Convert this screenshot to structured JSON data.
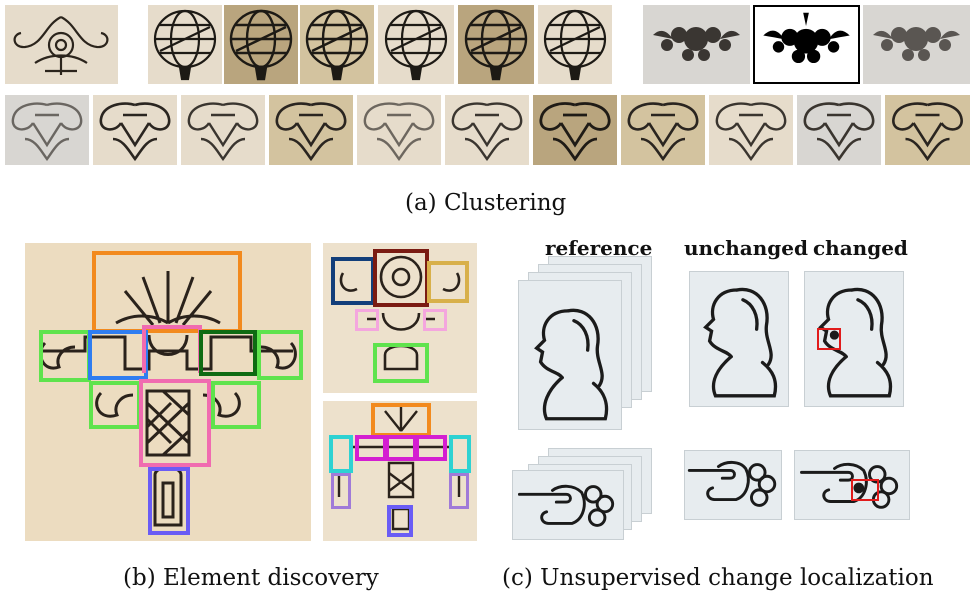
{
  "captions": {
    "a": "(a) Clustering",
    "b": "(b) Element discovery",
    "c": "(c) Unsupervised change localization"
  },
  "change_localization": {
    "column_labels": [
      "reference",
      "unchanged",
      "changed"
    ],
    "highlight_color": "#e11b1b"
  },
  "element_discovery": {
    "box_colors": {
      "orange": "#f28a1e",
      "green": "#5fe34d",
      "blue": "#2f7df0",
      "dark_green": "#0e6b12",
      "pink": "#f06bb0",
      "purple": "#6a5cf5",
      "navy": "#123e7a",
      "maroon": "#7a1b12",
      "gold": "#d8b04a",
      "light_pink": "#f4a6de",
      "cyan": "#2ed2d2",
      "magenta": "#d41fd1",
      "lavender": "#a07ad8"
    }
  }
}
